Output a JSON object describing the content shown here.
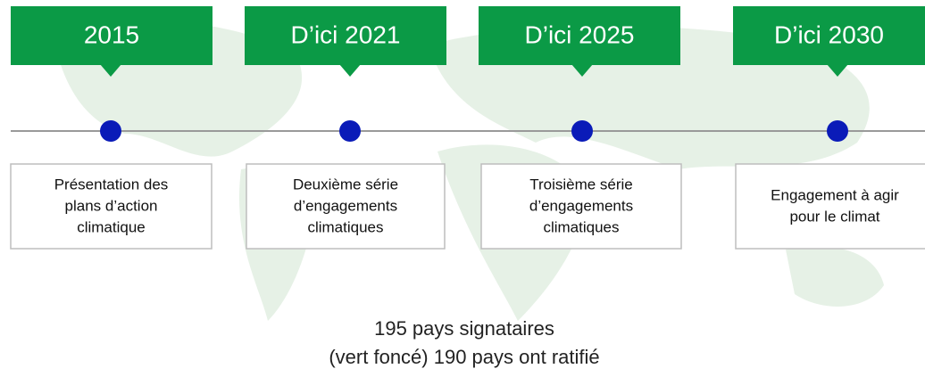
{
  "milestones": [
    {
      "label": "2015",
      "text": [
        "Présentation des",
        "plans d’action",
        "climatique"
      ]
    },
    {
      "label": "D’ici 2021",
      "text": [
        "Deuxième série",
        "d’engagements",
        "climatiques"
      ]
    },
    {
      "label": "D’ici 2025",
      "text": [
        "Troisième série",
        "d’engagements",
        "climatiques"
      ]
    },
    {
      "label": "D’ici 2030",
      "text": [
        "Engagement à agir",
        "pour le climat"
      ]
    }
  ],
  "footer": [
    "195 pays signataires",
    "(vert foncé) 190 pays ont ratifié"
  ]
}
